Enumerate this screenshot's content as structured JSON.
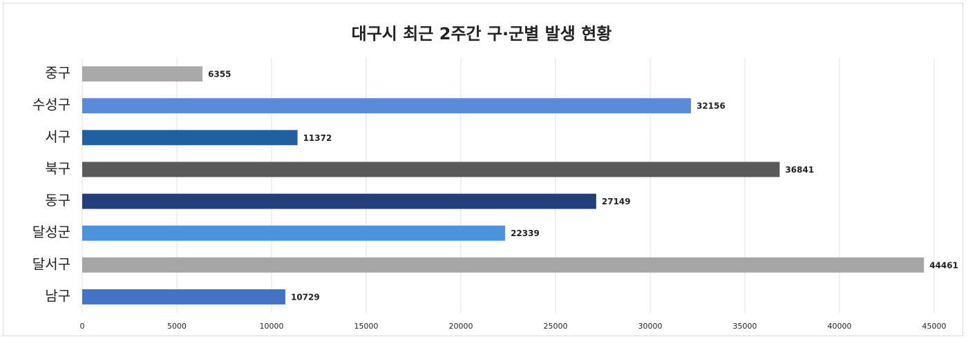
{
  "chart_data": {
    "type": "hbar",
    "title": "대구시 최근 2주간 구·군별 발생 현황",
    "categories": [
      "중구",
      "수성구",
      "서구",
      "북구",
      "동구",
      "달성군",
      "달서구",
      "남구"
    ],
    "values": [
      6355,
      32156,
      11372,
      36841,
      27149,
      22339,
      44461,
      10729
    ],
    "colors": [
      "#a9a9a9",
      "#5b8ad8",
      "#21609e",
      "#5a5a5a",
      "#223f7c",
      "#4d93dc",
      "#a6a6a6",
      "#4472c4"
    ],
    "xlim": [
      0,
      45000
    ],
    "xticks": [
      0,
      5000,
      10000,
      15000,
      20000,
      25000,
      30000,
      35000,
      40000,
      45000
    ],
    "grid": true
  }
}
